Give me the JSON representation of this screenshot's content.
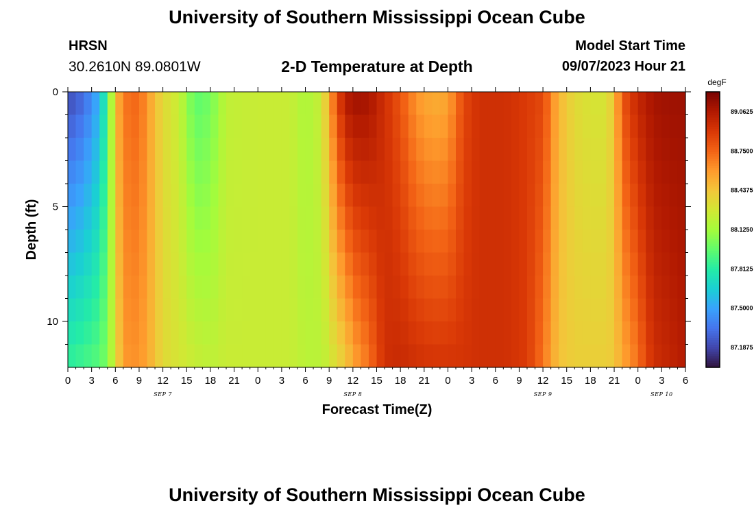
{
  "header": {
    "title": "University of Southern Mississippi Ocean Cube",
    "station": "HRSN",
    "coords": "30.2610N  89.0801W",
    "plot_title": "2-D Temperature at Depth",
    "model_start_label": "Model Start Time",
    "model_start_value": "09/07/2023 Hour 21"
  },
  "footer": {
    "title": "University of Southern Mississippi Ocean Cube"
  },
  "chart_data": {
    "type": "heatmap",
    "xlabel": "Forecast Time(Z)",
    "ylabel": "Depth (ft)",
    "x_ticks": [
      "0",
      "3",
      "6",
      "9",
      "12",
      "15",
      "18",
      "21",
      "0",
      "3",
      "6",
      "9",
      "12",
      "15",
      "18",
      "21",
      "0",
      "3",
      "6",
      "9",
      "12",
      "15",
      "18",
      "21",
      "0",
      "3",
      "6"
    ],
    "x_range_hours": [
      0,
      78
    ],
    "date_labels": [
      {
        "label": "SEP 7",
        "hour": 12
      },
      {
        "label": "SEP 8",
        "hour": 36
      },
      {
        "label": "SEP 9",
        "hour": 60
      },
      {
        "label": "SEP 10",
        "hour": 75
      }
    ],
    "y_ticks": [
      "0",
      "5",
      "10"
    ],
    "y_range_ft": [
      0,
      12
    ],
    "y_inverted": true,
    "colorbar": {
      "unit": "degF",
      "min": 87.03,
      "max": 89.22,
      "tick_labels": [
        "89.0625",
        "88.7500",
        "88.4375",
        "88.1250",
        "87.8125",
        "87.5000",
        "87.1875"
      ],
      "colors": [
        "#30123b",
        "#4145ab",
        "#4675ed",
        "#39a2fc",
        "#1bcfd4",
        "#24eca6",
        "#61fc6c",
        "#a4fc3b",
        "#d1e834",
        "#f3c63a",
        "#fe9b2d",
        "#f36315",
        "#d93806",
        "#b11901",
        "#7a0403"
      ]
    },
    "time_profile": {
      "hours": [
        0,
        2,
        4,
        5,
        6,
        7,
        9,
        10,
        12,
        14,
        16,
        18,
        20,
        24,
        28,
        30,
        32,
        33,
        34,
        35,
        36,
        38,
        40,
        42,
        44,
        46,
        48,
        50,
        52,
        55,
        58,
        60,
        62,
        64,
        66,
        68,
        69,
        70,
        72,
        73,
        74,
        76,
        78
      ],
      "temps_surface": [
        87.2,
        87.3,
        87.55,
        87.9,
        88.45,
        88.7,
        88.75,
        88.6,
        88.35,
        88.25,
        87.95,
        88.0,
        88.22,
        88.25,
        88.25,
        88.15,
        88.25,
        88.55,
        88.85,
        89.05,
        89.12,
        89.1,
        88.95,
        88.8,
        88.6,
        88.52,
        88.55,
        88.85,
        88.95,
        88.95,
        88.9,
        88.85,
        88.5,
        88.35,
        88.3,
        88.3,
        88.45,
        88.8,
        89.0,
        89.05,
        89.1,
        89.12,
        89.12
      ],
      "temps_bottom": [
        87.85,
        87.9,
        87.95,
        88.05,
        88.3,
        88.6,
        88.62,
        88.55,
        88.35,
        88.3,
        88.25,
        88.22,
        88.25,
        88.25,
        88.25,
        88.2,
        88.2,
        88.25,
        88.35,
        88.4,
        88.55,
        88.7,
        88.95,
        88.98,
        88.95,
        88.93,
        88.93,
        88.93,
        88.95,
        88.95,
        88.9,
        88.7,
        88.45,
        88.4,
        88.4,
        88.4,
        88.42,
        88.55,
        88.7,
        88.85,
        88.95,
        89.0,
        89.05
      ]
    }
  }
}
